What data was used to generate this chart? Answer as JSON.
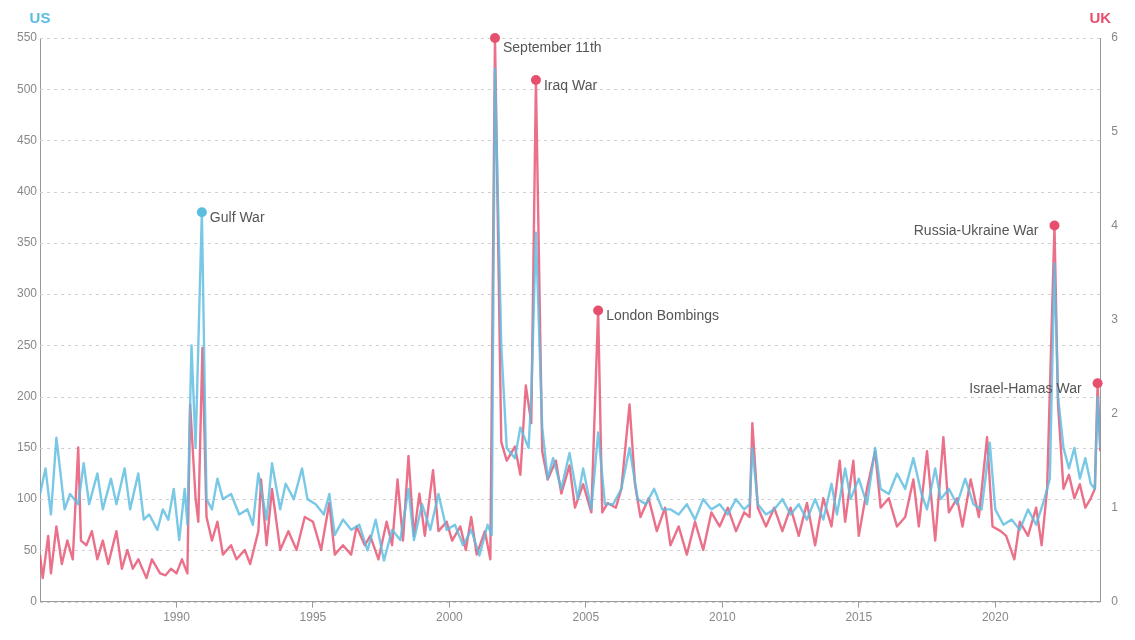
{
  "chart_data": {
    "type": "line",
    "xlim": [
      1985,
      2023.85
    ],
    "xticks": [
      1990,
      1995,
      2000,
      2005,
      2010,
      2015,
      2020
    ],
    "ylim": [
      0,
      550
    ],
    "yticks": [
      0,
      50,
      100,
      150,
      200,
      250,
      300,
      350,
      400,
      450,
      500,
      550
    ],
    "y2lim": [
      0,
      6
    ],
    "y2ticks": [
      0,
      1,
      2,
      3,
      4,
      5,
      6
    ],
    "grid": "y",
    "legend": false,
    "marker": "none",
    "line_style": "solid",
    "series": [
      {
        "name": "US",
        "color": "#5bbde0",
        "x": [
          1985.0,
          1985.2,
          1985.4,
          1985.6,
          1985.9,
          1986.1,
          1986.4,
          1986.6,
          1986.8,
          1987.1,
          1987.3,
          1987.6,
          1987.8,
          1988.1,
          1988.3,
          1988.6,
          1988.8,
          1989.0,
          1989.3,
          1989.5,
          1989.7,
          1989.9,
          1990.1,
          1990.3,
          1990.4,
          1990.55,
          1990.7,
          1990.93,
          1991.1,
          1991.3,
          1991.5,
          1991.7,
          1992.0,
          1992.3,
          1992.6,
          1992.8,
          1993.0,
          1993.3,
          1993.5,
          1993.8,
          1994.0,
          1994.3,
          1994.6,
          1994.8,
          1995.1,
          1995.4,
          1995.6,
          1995.8,
          1996.1,
          1996.4,
          1996.7,
          1997.0,
          1997.3,
          1997.6,
          1997.9,
          1998.2,
          1998.5,
          1998.7,
          1999.0,
          1999.3,
          1999.6,
          1999.9,
          2000.2,
          2000.5,
          2000.8,
          2001.1,
          2001.4,
          2001.55,
          2001.67,
          2001.9,
          2002.1,
          2002.4,
          2002.6,
          2002.9,
          2003.0,
          2003.17,
          2003.4,
          2003.6,
          2003.8,
          2004.1,
          2004.4,
          2004.7,
          2004.9,
          2005.2,
          2005.45,
          2005.7,
          2006.0,
          2006.3,
          2006.6,
          2006.9,
          2007.2,
          2007.5,
          2007.8,
          2008.1,
          2008.4,
          2008.7,
          2009.0,
          2009.3,
          2009.6,
          2009.9,
          2010.2,
          2010.5,
          2010.8,
          2011.0,
          2011.1,
          2011.3,
          2011.6,
          2011.9,
          2012.2,
          2012.5,
          2012.8,
          2013.1,
          2013.4,
          2013.7,
          2014.0,
          2014.2,
          2014.5,
          2014.7,
          2015.0,
          2015.3,
          2015.6,
          2015.8,
          2016.1,
          2016.4,
          2016.7,
          2017.0,
          2017.3,
          2017.5,
          2017.8,
          2018.0,
          2018.3,
          2018.6,
          2018.9,
          2019.2,
          2019.5,
          2019.8,
          2020.0,
          2020.3,
          2020.6,
          2020.9,
          2021.2,
          2021.5,
          2021.8,
          2022.0,
          2022.17,
          2022.3,
          2022.5,
          2022.7,
          2022.9,
          2023.1,
          2023.3,
          2023.5,
          2023.65,
          2023.75,
          2023.85
        ],
        "values": [
          105,
          130,
          85,
          160,
          90,
          105,
          95,
          135,
          95,
          125,
          90,
          120,
          95,
          130,
          90,
          125,
          80,
          85,
          70,
          90,
          80,
          110,
          60,
          110,
          75,
          250,
          150,
          380,
          100,
          90,
          120,
          100,
          105,
          85,
          90,
          75,
          125,
          80,
          135,
          90,
          115,
          100,
          130,
          100,
          95,
          85,
          105,
          65,
          80,
          70,
          75,
          50,
          80,
          40,
          70,
          60,
          110,
          60,
          95,
          70,
          105,
          70,
          75,
          55,
          70,
          45,
          75,
          65,
          520,
          250,
          150,
          140,
          170,
          150,
          200,
          360,
          170,
          120,
          140,
          110,
          145,
          100,
          130,
          90,
          165,
          95,
          95,
          110,
          150,
          100,
          95,
          110,
          90,
          90,
          85,
          95,
          80,
          100,
          90,
          95,
          85,
          100,
          90,
          95,
          150,
          95,
          85,
          90,
          100,
          85,
          95,
          80,
          100,
          80,
          115,
          85,
          130,
          100,
          120,
          95,
          150,
          110,
          105,
          125,
          110,
          140,
          105,
          90,
          130,
          100,
          110,
          95,
          120,
          95,
          90,
          155,
          90,
          75,
          80,
          70,
          90,
          75,
          100,
          120,
          330,
          200,
          150,
          130,
          150,
          120,
          140,
          115,
          110,
          200,
          150
        ]
      },
      {
        "name": "UK",
        "color": "#e6506e",
        "axis": "y2",
        "x": [
          1985.0,
          1985.1,
          1985.3,
          1985.4,
          1985.6,
          1985.8,
          1986.0,
          1986.2,
          1986.4,
          1986.5,
          1986.7,
          1986.9,
          1987.1,
          1987.3,
          1987.5,
          1987.8,
          1988.0,
          1988.2,
          1988.4,
          1988.6,
          1988.9,
          1989.1,
          1989.4,
          1989.6,
          1989.8,
          1990.0,
          1990.2,
          1990.4,
          1990.5,
          1990.7,
          1990.8,
          1990.95,
          1991.1,
          1991.3,
          1991.5,
          1991.7,
          1992.0,
          1992.2,
          1992.5,
          1992.7,
          1993.0,
          1993.1,
          1993.3,
          1993.5,
          1993.8,
          1994.1,
          1994.4,
          1994.7,
          1995.0,
          1995.3,
          1995.6,
          1995.8,
          1996.1,
          1996.4,
          1996.6,
          1996.9,
          1997.1,
          1997.4,
          1997.7,
          1997.9,
          1998.1,
          1998.3,
          1998.5,
          1998.7,
          1998.9,
          1999.1,
          1999.4,
          1999.6,
          1999.9,
          2000.1,
          2000.4,
          2000.6,
          2000.8,
          2001.0,
          2001.3,
          2001.5,
          2001.67,
          2001.9,
          2002.1,
          2002.4,
          2002.6,
          2002.8,
          2003.0,
          2003.17,
          2003.4,
          2003.6,
          2003.9,
          2004.1,
          2004.4,
          2004.6,
          2004.9,
          2005.2,
          2005.45,
          2005.6,
          2005.8,
          2006.1,
          2006.3,
          2006.6,
          2006.8,
          2007.0,
          2007.3,
          2007.6,
          2007.9,
          2008.1,
          2008.4,
          2008.7,
          2009.0,
          2009.3,
          2009.6,
          2009.9,
          2010.2,
          2010.5,
          2010.8,
          2011.0,
          2011.1,
          2011.3,
          2011.6,
          2011.9,
          2012.2,
          2012.5,
          2012.8,
          2013.1,
          2013.4,
          2013.7,
          2014.0,
          2014.3,
          2014.5,
          2014.8,
          2015.0,
          2015.3,
          2015.6,
          2015.8,
          2016.1,
          2016.4,
          2016.7,
          2017.0,
          2017.2,
          2017.5,
          2017.8,
          2018.1,
          2018.3,
          2018.6,
          2018.8,
          2019.1,
          2019.4,
          2019.7,
          2019.9,
          2020.2,
          2020.4,
          2020.7,
          2020.9,
          2021.2,
          2021.5,
          2021.7,
          2021.9,
          2022.17,
          2022.3,
          2022.5,
          2022.7,
          2022.9,
          2023.1,
          2023.3,
          2023.5,
          2023.65,
          2023.75,
          2023.85
        ],
        "values": [
          0.5,
          0.25,
          0.7,
          0.3,
          0.8,
          0.4,
          0.65,
          0.45,
          1.64,
          0.65,
          0.6,
          0.75,
          0.45,
          0.65,
          0.4,
          0.75,
          0.35,
          0.55,
          0.35,
          0.45,
          0.25,
          0.45,
          0.3,
          0.28,
          0.35,
          0.3,
          0.45,
          0.3,
          2.1,
          1.1,
          0.85,
          2.7,
          0.9,
          0.65,
          0.85,
          0.5,
          0.6,
          0.45,
          0.55,
          0.4,
          0.75,
          1.3,
          0.6,
          1.2,
          0.55,
          0.75,
          0.55,
          0.9,
          0.85,
          0.55,
          1.05,
          0.5,
          0.6,
          0.5,
          0.8,
          0.6,
          0.7,
          0.45,
          0.85,
          0.6,
          1.3,
          0.65,
          1.55,
          0.7,
          1.15,
          0.7,
          1.4,
          0.75,
          0.85,
          0.65,
          0.8,
          0.55,
          0.9,
          0.5,
          0.75,
          0.45,
          6.0,
          1.7,
          1.5,
          1.65,
          1.35,
          2.3,
          1.9,
          5.55,
          1.6,
          1.3,
          1.5,
          1.15,
          1.45,
          1.0,
          1.25,
          0.95,
          3.1,
          0.95,
          1.05,
          1.0,
          1.2,
          2.1,
          1.25,
          0.9,
          1.1,
          0.75,
          1.0,
          0.6,
          0.8,
          0.5,
          0.85,
          0.55,
          0.95,
          0.8,
          1.0,
          0.75,
          0.95,
          0.9,
          1.9,
          1.0,
          0.8,
          1.0,
          0.75,
          1.0,
          0.7,
          1.05,
          0.6,
          1.1,
          0.8,
          1.5,
          0.85,
          1.5,
          0.7,
          1.2,
          1.6,
          1.0,
          1.1,
          0.8,
          0.9,
          1.3,
          0.8,
          1.6,
          0.65,
          1.75,
          0.95,
          1.1,
          0.8,
          1.3,
          0.9,
          1.75,
          0.8,
          0.75,
          0.7,
          0.45,
          0.85,
          0.7,
          1.0,
          0.6,
          1.2,
          4.0,
          2.1,
          1.2,
          1.35,
          1.1,
          1.25,
          1.0,
          1.1,
          1.2,
          2.32,
          1.6
        ]
      }
    ],
    "annotations": [
      {
        "text": "Gulf War",
        "x": 1990.93,
        "y": 380
      },
      {
        "text": "September 11th",
        "x": 2001.67,
        "y": 550
      },
      {
        "text": "Iraq War",
        "x": 2003.17,
        "y": 509
      },
      {
        "text": "London Bombings",
        "x": 2005.45,
        "y": 284
      },
      {
        "text": "Russia-Ukraine War",
        "x": 2022.17,
        "y": 367
      },
      {
        "text": "Israel-Hamas War",
        "x": 2023.75,
        "y": 213
      }
    ]
  }
}
